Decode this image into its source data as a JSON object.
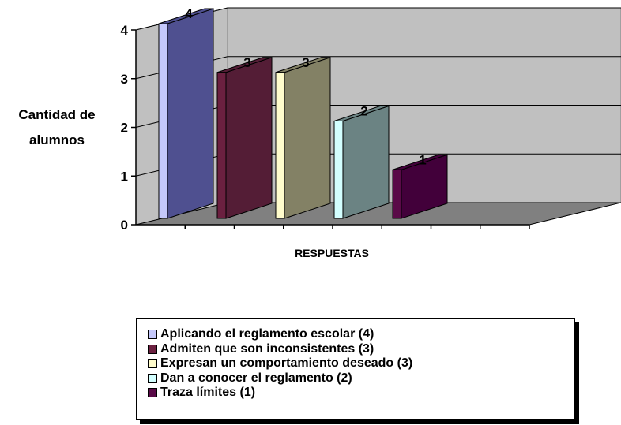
{
  "chart_data": {
    "type": "bar",
    "title": "",
    "ylabel": "Cantidad de alumnos",
    "xlabel": "RESPUESTAS",
    "ylim": [
      0,
      4
    ],
    "yticks": [
      0,
      1,
      2,
      3,
      4
    ],
    "grid": true,
    "legend_position": "bottom",
    "categories": [
      "Aplicando el reglamento escolar (4)",
      "Admiten que son inconsistentes (3)",
      "Expresan un comportamiento deseado (3)",
      "Dan a conocer el reglamento (2)",
      "Traza límites (1)"
    ],
    "values": [
      4,
      3,
      3,
      2,
      1
    ],
    "colors": [
      "#4f5090",
      "#6b2040",
      "#f6f4c4",
      "#cff6f6",
      "#5a0a48"
    ],
    "side_colors": [
      "#4f5090",
      "#541d36",
      "#838165",
      "#6b8383",
      "#42003a"
    ],
    "front_colors": [
      "#c5c8fb",
      "#6b2040",
      "#fffccc",
      "#d3ffff",
      "#5a0a48"
    ]
  }
}
